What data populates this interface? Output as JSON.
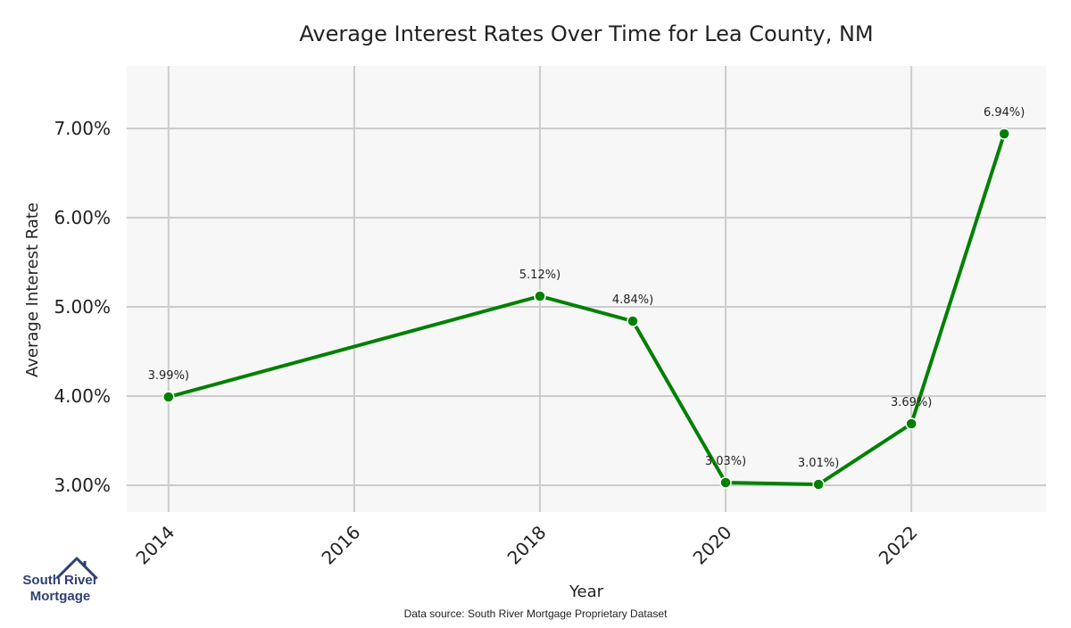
{
  "chart_data": {
    "type": "line",
    "title": "Average Interest Rates Over Time for Lea County, NM",
    "xlabel": "Year",
    "ylabel": "Average Interest Rate",
    "x": [
      2014,
      2018,
      2019,
      2020,
      2021,
      2022,
      2023
    ],
    "values": [
      3.99,
      5.12,
      4.84,
      3.03,
      3.01,
      3.69,
      6.94
    ],
    "point_labels": [
      "3.99%)",
      "5.12%)",
      "4.84%)",
      "3.03%)",
      "3.01%)",
      "3.69%)",
      "6.94%)"
    ],
    "xticks": [
      2014,
      2016,
      2018,
      2020,
      2022
    ],
    "xtick_labels": [
      "2014",
      "2016",
      "2018",
      "2020",
      "2022"
    ],
    "yticks": [
      3.0,
      4.0,
      5.0,
      6.0,
      7.0
    ],
    "ytick_labels": [
      "3.00%",
      "4.00%",
      "5.00%",
      "6.00%",
      "7.00%"
    ],
    "xlim": [
      2013.55,
      2023.45
    ],
    "ylim": [
      2.7,
      7.7
    ],
    "grid": true,
    "series_color": "#008000",
    "plot_background": "#f7f7f7",
    "grid_color": "#cccccc"
  },
  "brand": {
    "line1": "South River",
    "line2": "Mortgage",
    "icon": "house-icon",
    "color": "#2f3f76"
  },
  "footer": {
    "source": "Data source: South River Mortgage Proprietary Dataset"
  }
}
